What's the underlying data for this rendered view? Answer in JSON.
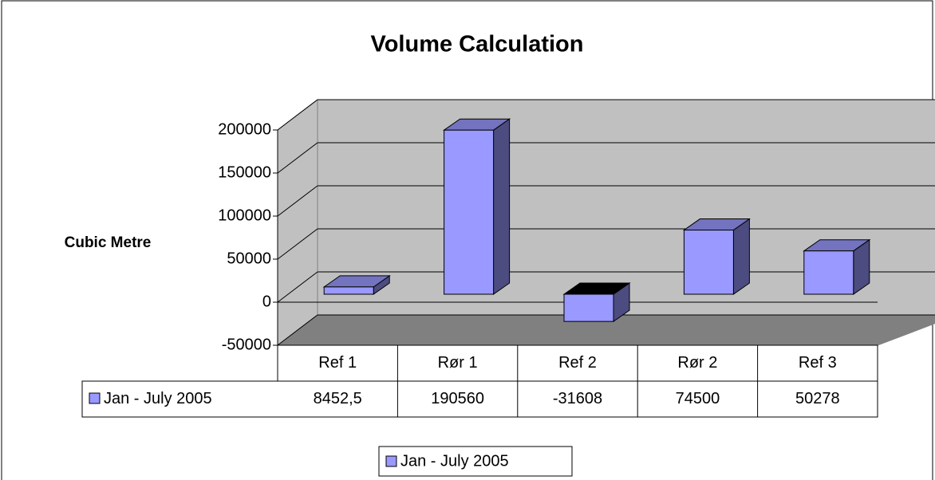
{
  "chart_data": {
    "type": "bar3d",
    "title": "Volume Calculation",
    "y_label": "Cubic Metre",
    "categories": [
      "Ref 1",
      "Rør 1",
      "Ref 2",
      "Rør 2",
      "Ref 3"
    ],
    "series": [
      {
        "name": "Jan - July 2005",
        "color": "#9999ff",
        "values": [
          8452.5,
          190560,
          -31608,
          74500,
          50278
        ],
        "value_labels": [
          "8452,5",
          "190560",
          "-31608",
          "74500",
          "50278"
        ]
      }
    ],
    "ylim": [
      -50000,
      200000
    ],
    "yticks": [
      -50000,
      0,
      50000,
      100000,
      150000,
      200000
    ],
    "grid": true,
    "legend": "bottom",
    "data_table": true
  }
}
